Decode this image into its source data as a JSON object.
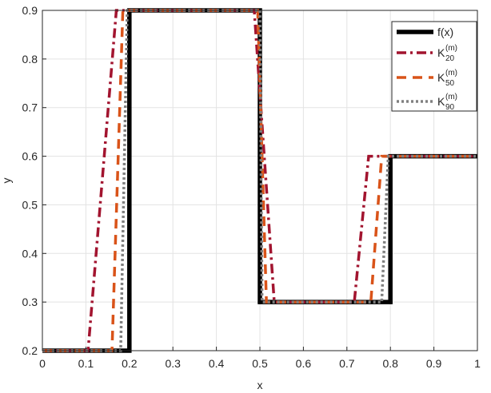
{
  "chart_data": {
    "type": "line",
    "xlabel": "x",
    "ylabel": "y",
    "xlim": [
      0,
      1
    ],
    "xticks": [
      0,
      0.1,
      0.2,
      0.3,
      0.4,
      0.5,
      0.6,
      0.7,
      0.8,
      0.9,
      1
    ],
    "ylim": [
      0.2,
      0.9
    ],
    "yticks": [
      0.2,
      0.3,
      0.4,
      0.5,
      0.6,
      0.7,
      0.8,
      0.9
    ],
    "grid": true,
    "legend": "upper right",
    "series": [
      {
        "name": "f(x)",
        "color": "#000000",
        "style": "solid",
        "x": [
          0,
          0.2,
          0.2,
          0.5,
          0.5,
          0.8,
          0.8,
          1
        ],
        "values": [
          0.2,
          0.2,
          0.9,
          0.9,
          0.3,
          0.3,
          0.6,
          0.6
        ]
      },
      {
        "name": "K",
        "superscript": "(m)",
        "subscript": "20",
        "color": "#a2142f",
        "style": "dashdot",
        "x": [
          0,
          0.105,
          0.17,
          0.487,
          0.533,
          0.717,
          0.75,
          1
        ],
        "values": [
          0.2,
          0.2,
          0.9,
          0.9,
          0.3,
          0.3,
          0.6,
          0.6
        ]
      },
      {
        "name": "K",
        "superscript": "(m)",
        "subscript": "50",
        "color": "#d95319",
        "style": "dashed",
        "x": [
          0,
          0.16,
          0.185,
          0.495,
          0.515,
          0.755,
          0.78,
          1
        ],
        "values": [
          0.2,
          0.2,
          0.9,
          0.9,
          0.3,
          0.3,
          0.6,
          0.6
        ]
      },
      {
        "name": "K",
        "superscript": "(m)",
        "subscript": "90",
        "color": "#808080",
        "style": "dotted",
        "x": [
          0,
          0.18,
          0.195,
          0.5,
          0.505,
          0.78,
          0.795,
          1
        ],
        "values": [
          0.2,
          0.2,
          0.9,
          0.9,
          0.3,
          0.3,
          0.6,
          0.6
        ]
      }
    ]
  }
}
